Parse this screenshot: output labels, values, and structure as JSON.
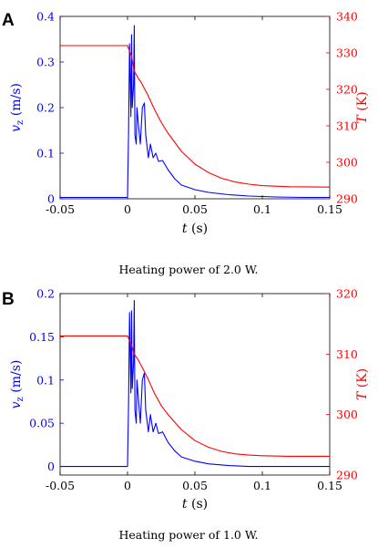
{
  "chart_data": [
    {
      "type": "line",
      "panel": "A",
      "caption": "Heating power of 2.0 W.",
      "xlabel": "t (s)",
      "xlim": [
        -0.05,
        0.15
      ],
      "xticks": [
        "-0.05",
        "0",
        "0.05",
        "0.1",
        "0.15"
      ],
      "left_axis": {
        "label": "v_z (m/s)",
        "ylim": [
          0,
          0.4
        ],
        "ticks": [
          "0",
          "0.1",
          "0.2",
          "0.3",
          "0.4"
        ],
        "color": "#0000ff"
      },
      "right_axis": {
        "label": "T (K)",
        "ylim": [
          290,
          340
        ],
        "ticks": [
          "290",
          "300",
          "310",
          "320",
          "330",
          "340"
        ],
        "color": "#ff0000"
      },
      "series": [
        {
          "axis": "left",
          "color": "#0000ff",
          "x": [
            -0.05,
            -0.02,
            0.0,
            0.0008,
            0.0015,
            0.0025,
            0.003,
            0.0035,
            0.0045,
            0.005,
            0.0055,
            0.0065,
            0.007,
            0.008,
            0.0095,
            0.011,
            0.0125,
            0.0135,
            0.0155,
            0.017,
            0.019,
            0.021,
            0.023,
            0.026,
            0.03,
            0.035,
            0.04,
            0.05,
            0.06,
            0.075,
            0.09,
            0.11,
            0.13,
            0.15
          ],
          "y": [
            0.003,
            0.003,
            0.003,
            0.15,
            0.34,
            0.18,
            0.36,
            0.2,
            0.25,
            0.38,
            0.14,
            0.12,
            0.2,
            0.165,
            0.12,
            0.2,
            0.21,
            0.14,
            0.09,
            0.12,
            0.09,
            0.1,
            0.082,
            0.084,
            0.064,
            0.044,
            0.03,
            0.02,
            0.014,
            0.009,
            0.006,
            0.004,
            0.003,
            0.003
          ]
        },
        {
          "axis": "right",
          "color": "#ff0000",
          "x": [
            -0.05,
            -0.02,
            0.0,
            0.003,
            0.005,
            0.008,
            0.01,
            0.015,
            0.02,
            0.025,
            0.03,
            0.04,
            0.05,
            0.06,
            0.07,
            0.08,
            0.09,
            0.1,
            0.12,
            0.15
          ],
          "y": [
            332,
            332,
            332,
            329,
            325,
            323,
            322,
            318.5,
            314.5,
            311,
            308,
            303,
            299.5,
            297.2,
            295.6,
            294.6,
            294,
            293.6,
            293.3,
            293.2
          ]
        }
      ]
    },
    {
      "type": "line",
      "panel": "B",
      "caption": "Heating power of 1.0 W.",
      "xlabel": "t (s)",
      "xlim": [
        -0.05,
        0.15
      ],
      "xticks": [
        "-0.05",
        "0",
        "0.05",
        "0.1",
        "0.15"
      ],
      "left_axis": {
        "label": "v_z (m/s)",
        "ylim": [
          -0.01,
          0.2
        ],
        "ticks": [
          "0",
          "0.05",
          "0.1",
          "0.15",
          "0.2"
        ],
        "color": "#0000ff"
      },
      "right_axis": {
        "label": "T (K)",
        "ylim": [
          290,
          320
        ],
        "ticks": [
          "290",
          "300",
          "310",
          "320"
        ],
        "color": "#ff0000"
      },
      "series": [
        {
          "axis": "left",
          "color": "#0000ff",
          "x": [
            -0.05,
            -0.02,
            0.0,
            0.0008,
            0.0015,
            0.0025,
            0.003,
            0.0035,
            0.0045,
            0.005,
            0.0055,
            0.0065,
            0.007,
            0.008,
            0.0095,
            0.011,
            0.0125,
            0.0135,
            0.0155,
            0.017,
            0.019,
            0.021,
            0.023,
            0.026,
            0.03,
            0.035,
            0.04,
            0.05,
            0.06,
            0.075,
            0.09,
            0.11,
            0.13,
            0.15
          ],
          "y": [
            0.0,
            0.0,
            0.0,
            0.075,
            0.178,
            0.085,
            0.18,
            0.09,
            0.12,
            0.192,
            0.065,
            0.05,
            0.1,
            0.08,
            0.05,
            0.1,
            0.108,
            0.065,
            0.04,
            0.06,
            0.04,
            0.05,
            0.038,
            0.04,
            0.028,
            0.018,
            0.011,
            0.006,
            0.003,
            0.001,
            0.0,
            0.0,
            0.0,
            0.0
          ]
        },
        {
          "axis": "right",
          "color": "#ff0000",
          "x": [
            -0.05,
            -0.02,
            0.0,
            0.003,
            0.005,
            0.008,
            0.01,
            0.015,
            0.02,
            0.025,
            0.03,
            0.04,
            0.05,
            0.06,
            0.07,
            0.08,
            0.09,
            0.1,
            0.12,
            0.15
          ],
          "y": [
            313,
            313,
            313,
            311.5,
            310,
            309,
            308.2,
            306,
            303.5,
            301.5,
            300,
            297.5,
            295.7,
            294.6,
            293.9,
            293.5,
            293.3,
            293.2,
            293.1,
            293.1
          ]
        }
      ]
    }
  ]
}
